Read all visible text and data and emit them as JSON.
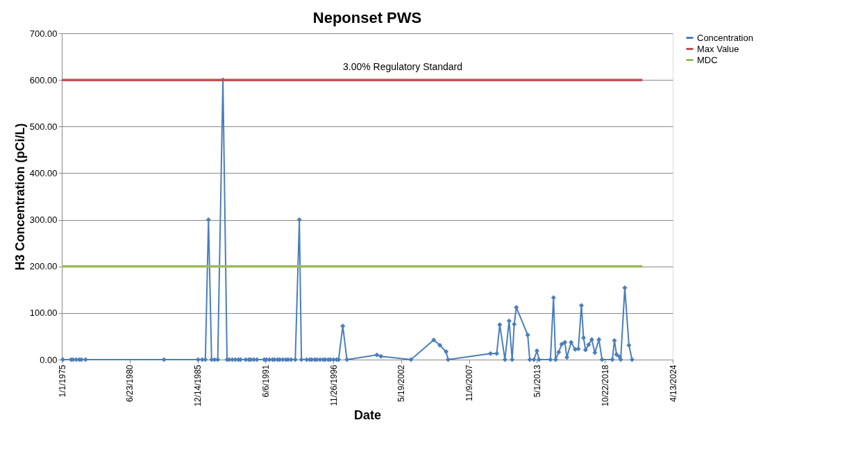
{
  "chart_data": {
    "type": "line",
    "title": "Neponset PWS",
    "xlabel": "Date",
    "ylabel": "H3 Concentration (pCi/L)",
    "series": [
      {
        "name": "Concentration",
        "color": "#4a7ebb",
        "x": [
          "1975-02",
          "1975-10",
          "1975-12",
          "1976-03",
          "1976-06",
          "1976-08",
          "1976-12",
          "1983-04",
          "1986-01",
          "1986-05",
          "1986-08",
          "1986-11",
          "1987-02",
          "1987-05",
          "1987-08",
          "1988-01",
          "1988-05",
          "1988-07",
          "1988-10",
          "1989-01",
          "1989-04",
          "1989-06",
          "1989-11",
          "1990-02",
          "1990-04",
          "1990-07",
          "1990-10",
          "1991-05",
          "1991-07",
          "1991-10",
          "1992-01",
          "1992-03",
          "1992-06",
          "1992-08",
          "1992-11",
          "1993-02",
          "1993-04",
          "1993-07",
          "1993-11",
          "1994-03",
          "1994-05",
          "1994-10",
          "1995-01",
          "1995-03",
          "1995-06",
          "1995-08",
          "1995-11",
          "1996-02",
          "1996-04",
          "1996-07",
          "1996-09",
          "1996-12",
          "1997-03",
          "1997-05",
          "1997-09",
          "1998-01",
          "2000-06",
          "2000-10",
          "2003-03",
          "2005-01",
          "2005-07",
          "2006-01",
          "2006-03",
          "2009-08",
          "2010-02",
          "2010-05",
          "2010-10",
          "2011-02",
          "2011-05",
          "2011-07",
          "2011-09",
          "2012-08",
          "2012-10",
          "2013-02",
          "2013-05",
          "2013-07",
          "2014-06",
          "2014-09",
          "2014-11",
          "2015-02",
          "2015-05",
          "2015-08",
          "2015-10",
          "2016-02",
          "2016-06",
          "2016-09",
          "2016-12",
          "2017-02",
          "2017-04",
          "2017-07",
          "2017-10",
          "2018-01",
          "2018-05",
          "2018-08",
          "2019-06",
          "2019-08",
          "2019-10",
          "2020-01",
          "2020-02",
          "2020-06",
          "2020-10",
          "2021-01"
        ],
        "values": [
          0,
          0,
          0,
          0,
          0,
          0,
          0,
          0,
          0,
          0,
          0,
          300,
          0,
          0,
          0,
          600,
          0,
          0,
          0,
          0,
          0,
          0,
          0,
          0,
          0,
          0,
          0,
          0,
          0,
          0,
          0,
          0,
          0,
          0,
          0,
          0,
          0,
          0,
          0,
          300,
          0,
          0,
          0,
          0,
          0,
          0,
          0,
          0,
          0,
          0,
          0,
          0,
          0,
          0,
          72,
          0,
          10,
          7,
          0,
          42,
          31,
          17,
          0,
          13,
          13,
          75,
          0,
          83,
          0,
          76,
          112,
          53,
          0,
          0,
          19,
          0,
          0,
          133,
          0,
          16,
          33,
          37,
          5,
          37,
          22,
          23,
          116,
          47,
          21,
          32,
          43,
          15,
          43,
          0,
          0,
          41,
          11,
          6,
          0,
          154,
          31,
          0
        ]
      },
      {
        "name": "Max Value",
        "color": "#c0504d",
        "marker": "none",
        "x": [
          "1975-01-01",
          "2021-11"
        ],
        "values": [
          600,
          600
        ]
      },
      {
        "name": "MDC",
        "color": "#9bbb59",
        "marker": "none",
        "x": [
          "1975-01-01",
          "2021-11"
        ],
        "values": [
          200,
          200
        ]
      }
    ],
    "annotations": [
      {
        "text": "3.00% Regulatory Standard",
        "x": "2002-07",
        "y": 600
      }
    ],
    "xlim": [
      "1975-01-01",
      "2024-04-13"
    ],
    "xticks": [
      {
        "value": "1975-01-01",
        "label": "1/1/1975"
      },
      {
        "value": "1980-06-23",
        "label": "6/23/1980"
      },
      {
        "value": "1985-12-14",
        "label": "12/14/1985"
      },
      {
        "value": "1991-06-06",
        "label": "6/6/1991"
      },
      {
        "value": "1996-11-26",
        "label": "11/26/1996"
      },
      {
        "value": "2002-05-19",
        "label": "5/19/2002"
      },
      {
        "value": "2007-11-09",
        "label": "11/9/2007"
      },
      {
        "value": "2013-05-01",
        "label": "5/1/2013"
      },
      {
        "value": "2018-10-22",
        "label": "10/22/2018"
      },
      {
        "value": "2024-04-13",
        "label": "4/13/2024"
      }
    ],
    "ylim": [
      0,
      700
    ],
    "yticks": [
      {
        "value": 0,
        "label": "0.00"
      },
      {
        "value": 100,
        "label": "100.00"
      },
      {
        "value": 200,
        "label": "200.00"
      },
      {
        "value": 300,
        "label": "300.00"
      },
      {
        "value": 400,
        "label": "400.00"
      },
      {
        "value": 500,
        "label": "500.00"
      },
      {
        "value": 600,
        "label": "600.00"
      },
      {
        "value": 700,
        "label": "700.00"
      }
    ],
    "grid": "y",
    "legend": "right",
    "marker": "diamond",
    "line_style": "solid"
  }
}
